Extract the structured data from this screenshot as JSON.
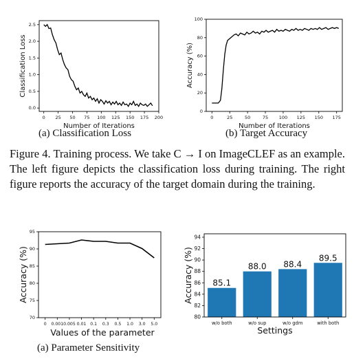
{
  "figure_caption": "Figure 4. Training process. We take C → I on ImageCLEF as an example. The left figure depicts the classification loss during training. The right figure reports the accuracy of the target domain during the training.",
  "subcaptions": {
    "loss": "(a) Classification Loss",
    "acc": "(b) Target Accuracy",
    "param": "(a) Parameter Sensitivity"
  },
  "chart_data": [
    {
      "id": "loss",
      "type": "line",
      "xlabel": "Number of Iterations",
      "ylabel": "Classification Loss",
      "xlim": [
        -8,
        200
      ],
      "ylim": [
        -0.1,
        2.62
      ],
      "xticks": [
        0,
        25,
        50,
        75,
        100,
        125,
        150,
        175,
        200
      ],
      "yticks": [
        0.0,
        0.5,
        1.0,
        1.5,
        2.0,
        2.5
      ],
      "ytick_labels": [
        "0.0",
        "0.5",
        "1.0",
        "1.5",
        "2.0",
        "2.5"
      ],
      "series": [
        {
          "color": "#000000",
          "x": [
            0,
            3,
            6,
            9,
            12,
            15,
            18,
            21,
            24,
            27,
            30,
            33,
            36,
            39,
            42,
            45,
            48,
            51,
            54,
            57,
            60,
            63,
            66,
            69,
            72,
            75,
            78,
            81,
            84,
            87,
            90,
            93,
            96,
            99,
            102,
            105,
            108,
            111,
            114,
            117,
            120,
            123,
            126,
            129,
            132,
            135,
            138,
            141,
            144,
            147,
            150,
            153,
            156,
            159,
            162,
            165,
            168,
            171,
            174,
            177,
            180,
            183,
            186,
            189
          ],
          "y": [
            2.5,
            2.45,
            2.5,
            2.38,
            2.4,
            2.2,
            2.05,
            1.95,
            1.75,
            1.6,
            1.65,
            1.45,
            1.3,
            1.2,
            1.15,
            0.95,
            0.85,
            0.8,
            0.65,
            0.55,
            0.6,
            0.45,
            0.5,
            0.4,
            0.35,
            0.45,
            0.3,
            0.35,
            0.25,
            0.3,
            0.2,
            0.28,
            0.15,
            0.25,
            0.2,
            0.12,
            0.22,
            0.15,
            0.2,
            0.1,
            0.18,
            0.12,
            0.2,
            0.1,
            0.15,
            0.08,
            0.18,
            0.1,
            0.12,
            0.05,
            0.15,
            0.1,
            0.2,
            0.08,
            0.12,
            0.05,
            0.15,
            0.1,
            0.08,
            0.12,
            0.05,
            0.1,
            0.15,
            0.07
          ]
        }
      ]
    },
    {
      "id": "acc",
      "type": "line",
      "xlabel": "Number of Iterations",
      "ylabel": "Accuracy (%)",
      "xlim": [
        -8,
        183
      ],
      "ylim": [
        0,
        100
      ],
      "xticks": [
        0,
        25,
        50,
        75,
        100,
        125,
        150,
        175
      ],
      "yticks": [
        0,
        20,
        40,
        60,
        80,
        100
      ],
      "series": [
        {
          "color": "#000000",
          "x": [
            0,
            3,
            6,
            9,
            12,
            14,
            16,
            18,
            20,
            22,
            25,
            28,
            31,
            34,
            37,
            40,
            43,
            46,
            49,
            52,
            55,
            58,
            61,
            64,
            67,
            70,
            73,
            76,
            79,
            82,
            85,
            88,
            91,
            94,
            97,
            100,
            103,
            106,
            109,
            112,
            115,
            118,
            121,
            124,
            127,
            130,
            133,
            136,
            139,
            142,
            145,
            148,
            151,
            154,
            157,
            160,
            163,
            166,
            169,
            172,
            175,
            178
          ],
          "y": [
            9,
            9,
            9,
            9,
            12,
            25,
            45,
            62,
            72,
            77,
            79,
            81,
            83,
            84,
            82,
            85,
            84,
            83,
            86,
            84,
            85,
            87,
            85,
            86,
            84,
            87,
            86,
            88,
            86,
            87,
            88,
            86,
            89,
            87,
            88,
            87,
            89,
            88,
            87,
            89,
            88,
            90,
            88,
            89,
            88,
            90,
            89,
            88,
            90,
            89,
            90,
            89,
            91,
            89,
            90,
            91,
            89,
            90,
            91,
            90,
            91,
            90
          ]
        }
      ]
    },
    {
      "id": "param",
      "type": "line",
      "xlabel": "Values of the parameter",
      "ylabel": "Accuracy (%)",
      "categories": [
        "0",
        "0.001",
        "0.005",
        "0.01",
        "0.1",
        "0.3",
        "0.5",
        "1.0",
        "3.0",
        "5.0"
      ],
      "ylim": [
        70,
        95
      ],
      "yticks": [
        70,
        75,
        80,
        85,
        90,
        95
      ],
      "series": [
        {
          "color": "#000000",
          "values": [
            91.3,
            91.5,
            91.7,
            92.6,
            92.2,
            92.2,
            91.7,
            91.7,
            90.1,
            87.4
          ]
        }
      ]
    },
    {
      "id": "ablation",
      "type": "bar",
      "xlabel": "Settings",
      "ylabel": "Accuracy (%)",
      "categories": [
        "w/o both",
        "w/o sup",
        "w/o gdm",
        "with both"
      ],
      "values": [
        85.1,
        88.0,
        88.4,
        89.5
      ],
      "data_labels": [
        "85.1",
        "88.0",
        "88.4",
        "89.5"
      ],
      "ylim": [
        80,
        94.6
      ],
      "yticks": [
        80,
        82,
        84,
        86,
        88,
        90,
        92,
        94
      ],
      "bar_color": "#1f77b4"
    }
  ]
}
